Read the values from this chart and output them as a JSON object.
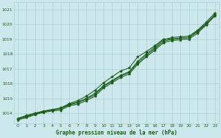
{
  "title": "Graphe pression niveau de la mer (hPa)",
  "bg_color": "#cce8ec",
  "grid_color": "#aacccc",
  "line_color": "#1a5c1a",
  "marker_color": "#1a5c1a",
  "text_color": "#1a5c1a",
  "xlim": [
    -0.5,
    23.5
  ],
  "ylim": [
    1013.3,
    1021.5
  ],
  "xticks": [
    0,
    1,
    2,
    3,
    4,
    5,
    6,
    7,
    8,
    9,
    10,
    11,
    12,
    13,
    14,
    15,
    16,
    17,
    18,
    19,
    20,
    21,
    22,
    23
  ],
  "yticks": [
    1014,
    1015,
    1016,
    1017,
    1018,
    1019,
    1020,
    1021
  ],
  "series": [
    [
      1013.65,
      1013.8,
      1014.0,
      1014.1,
      1014.2,
      1014.35,
      1014.65,
      1014.85,
      1015.15,
      1015.55,
      1016.05,
      1016.45,
      1016.85,
      1017.05,
      1017.8,
      1018.15,
      1018.55,
      1019.0,
      1019.0,
      1019.05,
      1019.1,
      1019.55,
      1020.05,
      1020.6
    ],
    [
      1013.65,
      1013.85,
      1014.0,
      1014.15,
      1014.25,
      1014.35,
      1014.6,
      1014.75,
      1015.0,
      1015.35,
      1015.85,
      1016.2,
      1016.55,
      1016.8,
      1017.5,
      1018.0,
      1018.45,
      1018.95,
      1019.1,
      1019.15,
      1019.2,
      1019.6,
      1020.15,
      1020.75
    ],
    [
      1013.6,
      1013.75,
      1013.95,
      1014.1,
      1014.2,
      1014.3,
      1014.55,
      1014.7,
      1014.95,
      1015.25,
      1015.8,
      1016.15,
      1016.5,
      1016.75,
      1017.4,
      1017.9,
      1018.35,
      1018.85,
      1019.0,
      1019.05,
      1019.1,
      1019.5,
      1020.0,
      1020.65
    ],
    [
      1013.55,
      1013.7,
      1013.9,
      1014.05,
      1014.15,
      1014.2,
      1014.5,
      1014.6,
      1014.85,
      1015.15,
      1015.7,
      1016.05,
      1016.4,
      1016.65,
      1017.3,
      1017.8,
      1018.25,
      1018.75,
      1018.9,
      1018.95,
      1019.0,
      1019.4,
      1019.95,
      1020.55
    ]
  ],
  "marker_indices": [
    0,
    1,
    2,
    3,
    4,
    5,
    6,
    7,
    8,
    9,
    10,
    11,
    12,
    13,
    14,
    15,
    16,
    17,
    18,
    19,
    20,
    21,
    22,
    23
  ],
  "figsize": [
    3.2,
    2.0
  ],
  "dpi": 100
}
